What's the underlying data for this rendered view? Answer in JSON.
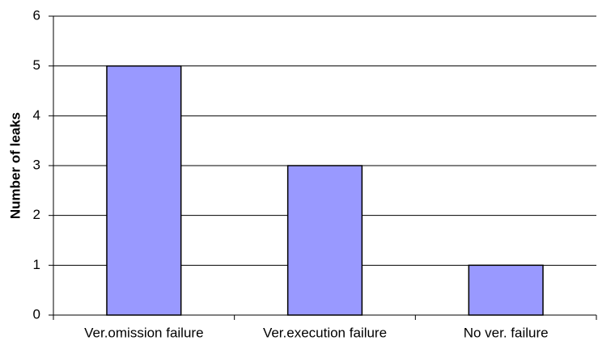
{
  "chart_data": {
    "type": "bar",
    "y_label": "Number of leaks",
    "categories": [
      "Ver.omission failure",
      "Ver.execution failure",
      "No ver. failure"
    ],
    "values": [
      5,
      3,
      1
    ],
    "color": "#9999ff",
    "ylim": [
      0,
      6
    ],
    "yticks": [
      0,
      1,
      2,
      3,
      4,
      5,
      6
    ],
    "grid": true
  }
}
